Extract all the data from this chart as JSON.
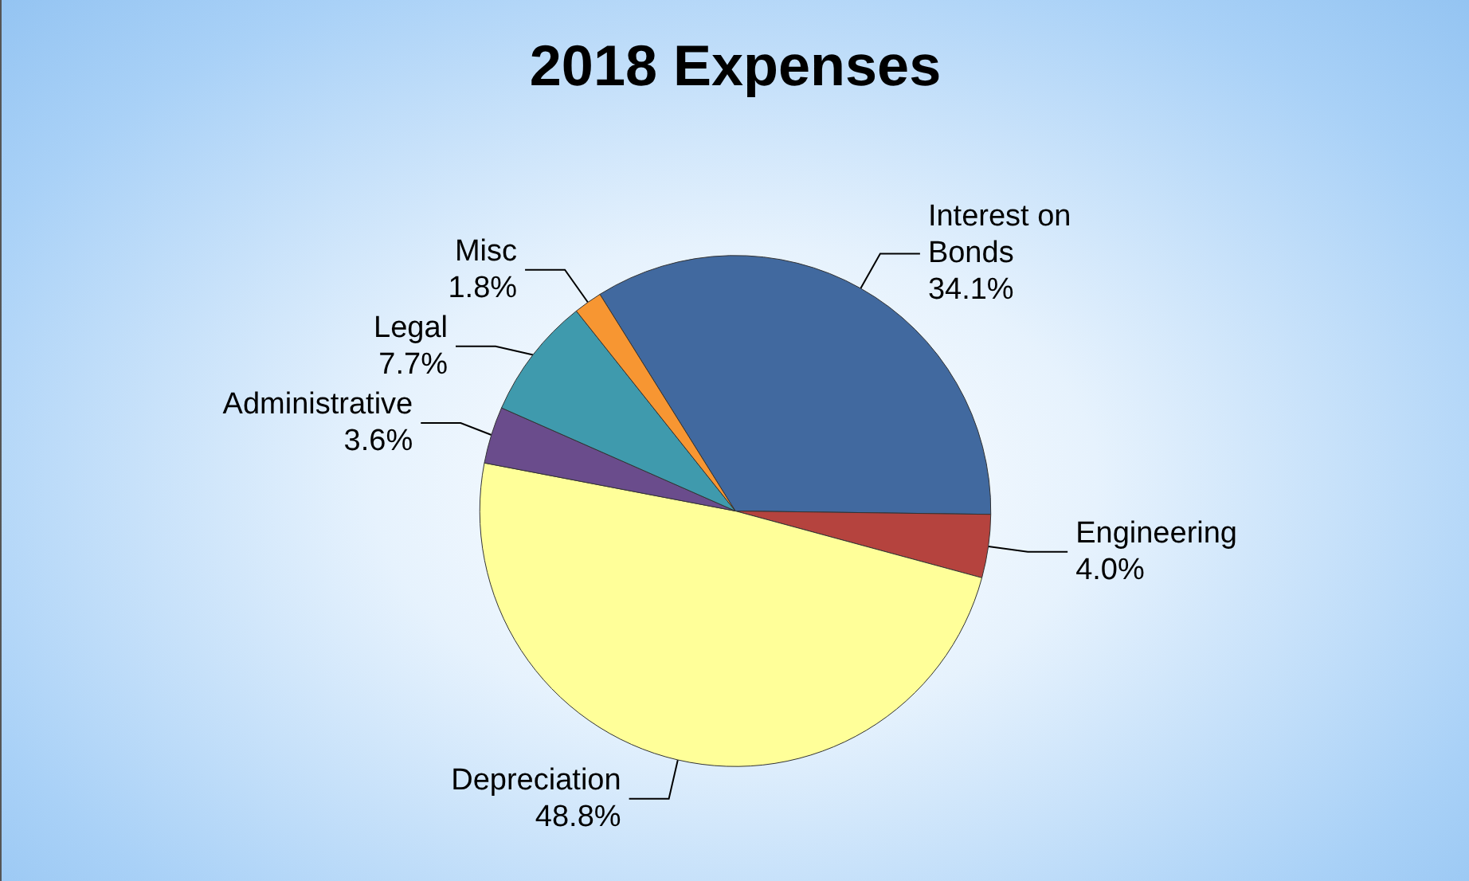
{
  "chart_data": {
    "type": "pie",
    "title": "2018 Expenses",
    "categories": [
      "Interest on Bonds",
      "Engineering",
      "Depreciation",
      "Administrative",
      "Legal",
      "Misc"
    ],
    "values": [
      34.1,
      4.0,
      48.8,
      3.6,
      7.7,
      1.8
    ],
    "colors": [
      "#41699f",
      "#b5433e",
      "#ffff99",
      "#6a4c8c",
      "#3f9aad",
      "#f79632"
    ],
    "value_labels": [
      "34.1%",
      "4.0%",
      "48.8%",
      "3.6%",
      "7.7%",
      "1.8%"
    ]
  }
}
